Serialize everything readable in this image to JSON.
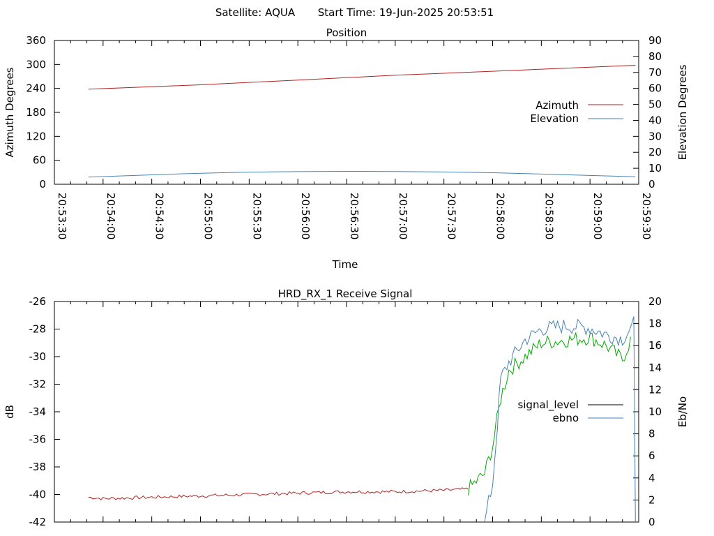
{
  "header": {
    "satellite_label": "Satellite: AQUA",
    "start_time_label": "Start Time: 19-Jun-2025 20:53:51"
  },
  "chart_data": [
    {
      "type": "line",
      "title": "Position",
      "xlabel": "Time",
      "ylabel": "Azimuth Degrees",
      "y2label": "Elevation Degrees",
      "xlim": [
        "20:53:30",
        "20:59:30"
      ],
      "ylim": [
        0,
        360
      ],
      "y2lim": [
        0,
        90
      ],
      "xticks": [
        "20:53:30",
        "20:54:00",
        "20:54:30",
        "20:55:00",
        "20:55:30",
        "20:56:00",
        "20:56:30",
        "20:57:00",
        "20:57:30",
        "20:58:00",
        "20:58:30",
        "20:59:00",
        "20:59:30"
      ],
      "yticks": [
        "0",
        "60",
        "120",
        "180",
        "240",
        "300",
        "360"
      ],
      "y2ticks": [
        "0",
        "10",
        "20",
        "30",
        "40",
        "50",
        "60",
        "70",
        "80",
        "90"
      ],
      "legend_position": "right",
      "series": [
        {
          "name": "Azimuth",
          "axis": "left",
          "color": "#b22222",
          "points": [
            [
              "20:53:51",
              238
            ],
            [
              "20:55:00",
              249
            ],
            [
              "20:56:00",
              261
            ],
            [
              "20:57:00",
              273
            ],
            [
              "20:58:00",
              283
            ],
            [
              "20:59:00",
              293
            ],
            [
              "20:59:28",
              298
            ]
          ]
        },
        {
          "name": "Elevation",
          "axis": "right",
          "color": "#4682b4",
          "points": [
            [
              "20:53:51",
              4.5
            ],
            [
              "20:54:30",
              5.9
            ],
            [
              "20:55:00",
              6.9
            ],
            [
              "20:55:30",
              7.6
            ],
            [
              "20:56:00",
              7.9
            ],
            [
              "20:56:30",
              8.1
            ],
            [
              "20:57:00",
              8.0
            ],
            [
              "20:57:30",
              7.7
            ],
            [
              "20:58:00",
              7.2
            ],
            [
              "20:58:30",
              6.4
            ],
            [
              "20:59:00",
              5.5
            ],
            [
              "20:59:28",
              4.7
            ]
          ]
        }
      ]
    },
    {
      "type": "line",
      "title": "HRD_RX_1 Receive Signal",
      "xlabel": "",
      "ylabel": "dB",
      "y2label": "Eb/No",
      "xlim": [
        "20:53:30",
        "20:59:30"
      ],
      "ylim": [
        -42,
        -26
      ],
      "y2lim": [
        0,
        20
      ],
      "yticks": [
        "-26",
        "-28",
        "-30",
        "-32",
        "-34",
        "-36",
        "-38",
        "-40",
        "-42"
      ],
      "y2ticks": [
        "0",
        "2",
        "4",
        "6",
        "8",
        "10",
        "12",
        "14",
        "16",
        "18",
        "20"
      ],
      "legend_position": "right",
      "series": [
        {
          "name": "signal_level",
          "axis": "left",
          "color": "#000000",
          "segments": [
            {
              "color": "#b22222",
              "points": [
                [
                  "20:53:51",
                  -40.2
                ],
                [
                  "20:54:00",
                  -40.3
                ],
                [
                  "20:54:30",
                  -40.2
                ],
                [
                  "20:55:00",
                  -40.1
                ],
                [
                  "20:55:30",
                  -40.0
                ],
                [
                  "20:56:00",
                  -39.9
                ],
                [
                  "20:56:30",
                  -39.8
                ],
                [
                  "20:57:00",
                  -39.8
                ],
                [
                  "20:57:30",
                  -39.7
                ],
                [
                  "20:57:45",
                  -39.6
                ]
              ]
            },
            {
              "color": "#00aa00",
              "points": [
                [
                  "20:57:45",
                  -39.6
                ],
                [
                  "20:57:55",
                  -38.5
                ],
                [
                  "20:58:00",
                  -36.5
                ],
                [
                  "20:58:05",
                  -33.0
                ],
                [
                  "20:58:10",
                  -31.0
                ],
                [
                  "20:58:20",
                  -30.0
                ],
                [
                  "20:58:30",
                  -29.0
                ],
                [
                  "20:58:45",
                  -28.8
                ],
                [
                  "20:59:00",
                  -28.6
                ],
                [
                  "20:59:10",
                  -29.2
                ],
                [
                  "20:59:20",
                  -30.2
                ],
                [
                  "20:59:25",
                  -28.8
                ]
              ]
            }
          ]
        },
        {
          "name": "ebno",
          "axis": "right",
          "color": "#4682b4",
          "points": [
            [
              "20:57:55",
              0
            ],
            [
              "20:58:00",
              3.5
            ],
            [
              "20:58:03",
              9.0
            ],
            [
              "20:58:05",
              13.0
            ],
            [
              "20:58:10",
              14.5
            ],
            [
              "20:58:20",
              16.5
            ],
            [
              "20:58:30",
              17.5
            ],
            [
              "20:58:45",
              17.8
            ],
            [
              "20:59:00",
              17.6
            ],
            [
              "20:59:10",
              17.0
            ],
            [
              "20:59:20",
              16.6
            ],
            [
              "20:59:27",
              18.0
            ],
            [
              "20:59:28",
              0
            ]
          ]
        }
      ]
    }
  ]
}
